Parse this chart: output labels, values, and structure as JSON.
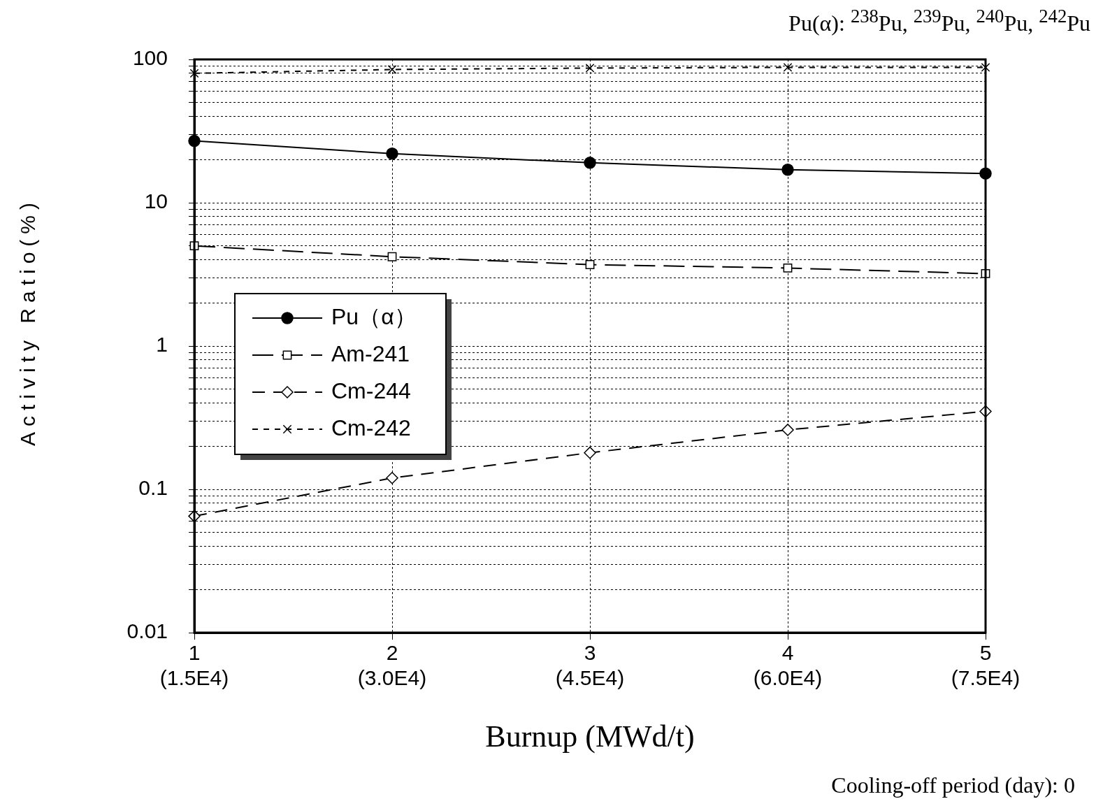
{
  "chart_data": {
    "type": "line",
    "xlabel": "Burnup (MWd/t)",
    "ylabel": "Activity Ratio(%)",
    "annotations": [
      "Pu(α): $^{238}$Pu, $^{239}$Pu, $^{240}$Pu, $^{242}$Pu",
      "Cooling-off period (day): 0"
    ],
    "categories": [
      "1\n(1.5E4)",
      "2\n(3.0E4)",
      "3\n(4.5E4)",
      "4\n(6.0E4)",
      "5\n(7.5E4)"
    ],
    "ylim": [
      0.01,
      100
    ],
    "log": "y",
    "yticks": [
      0.01,
      {
        "value": 0.02,
        "label": null
      },
      {
        "value": 0.03,
        "label": null
      },
      {
        "value": 0.04,
        "label": null
      },
      {
        "value": 0.05,
        "label": null
      },
      {
        "value": 0.06,
        "label": null
      },
      {
        "value": 0.07,
        "label": null
      },
      {
        "value": 0.08,
        "label": null
      },
      {
        "value": 0.09,
        "label": null
      },
      0.1,
      {
        "value": 0.2,
        "label": null
      },
      {
        "value": 0.3,
        "label": null
      },
      {
        "value": 0.4,
        "label": null
      },
      {
        "value": 0.5,
        "label": null
      },
      {
        "value": 0.6,
        "label": null
      },
      {
        "value": 0.7,
        "label": null
      },
      {
        "value": 0.8,
        "label": null
      },
      {
        "value": 0.9,
        "label": null
      },
      1,
      {
        "value": 2,
        "label": null
      },
      {
        "value": 3,
        "label": null
      },
      {
        "value": 4,
        "label": null
      },
      {
        "value": 5,
        "label": null
      },
      {
        "value": 6,
        "label": null
      },
      {
        "value": 7,
        "label": null
      },
      {
        "value": 8,
        "label": null
      },
      {
        "value": 9,
        "label": null
      },
      10,
      {
        "value": 20,
        "label": null
      },
      {
        "value": 30,
        "label": null
      },
      {
        "value": 40,
        "label": null
      },
      {
        "value": 50,
        "label": null
      },
      {
        "value": 60,
        "label": null
      },
      {
        "value": 70,
        "label": null
      },
      {
        "value": 80,
        "label": null
      },
      {
        "value": 90,
        "label": null
      },
      100
    ],
    "grid": true,
    "legend": "left",
    "series": [
      {
        "name": "Pu（α）",
        "color": "#000000",
        "marker": "circle",
        "line_style": "solid",
        "values": [
          27,
          22,
          19,
          17,
          16
        ]
      },
      {
        "name": "Am-241",
        "color": "#000000",
        "marker": "square",
        "line_style": "dashed",
        "values": [
          5.0,
          4.2,
          3.7,
          3.5,
          3.2
        ]
      },
      {
        "name": "Cm-244",
        "color": "#000000",
        "marker": "diamond",
        "line_style": "dashed",
        "values": [
          0.065,
          0.12,
          0.18,
          0.26,
          0.35
        ]
      },
      {
        "name": "Cm-242",
        "color": "#000000",
        "marker": "cross",
        "line_style": "dotted",
        "values": [
          80,
          85,
          87,
          88,
          88
        ]
      }
    ]
  }
}
